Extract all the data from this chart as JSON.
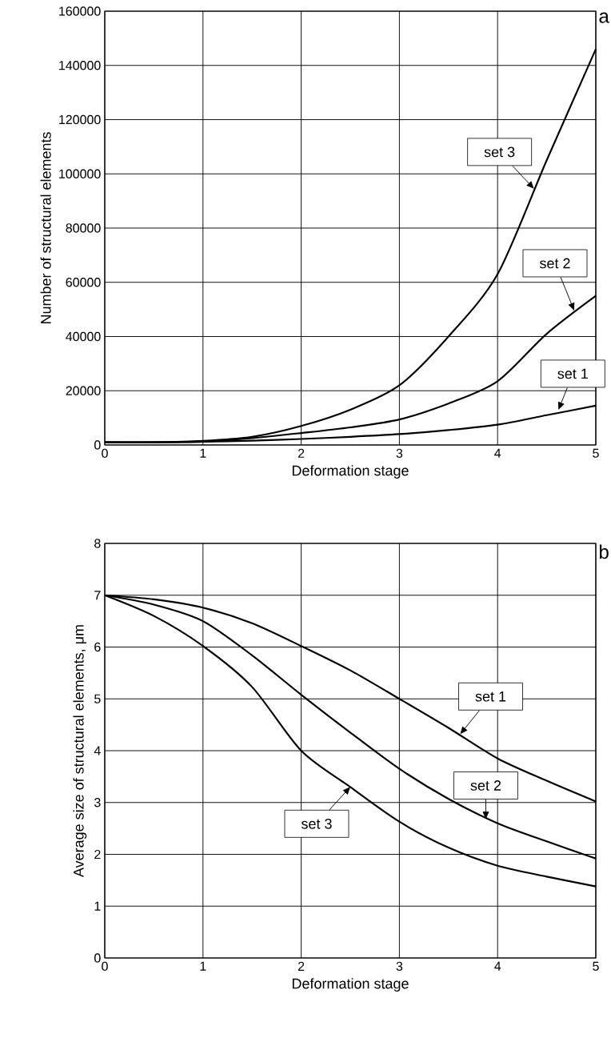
{
  "chart_data": [
    {
      "type": "line",
      "title": "a",
      "xlabel": "Deformation stage",
      "ylabel": "Number of structural elements",
      "x": [
        0,
        0.5,
        1,
        1.5,
        2,
        2.5,
        3,
        3.5,
        4,
        4.5,
        5
      ],
      "series": [
        {
          "color": "#000000",
          "values": [
            1000,
            1000,
            1200,
            1600,
            2200,
            3000,
            4000,
            5500,
            7500,
            11000,
            14500
          ]
        },
        {
          "color": "#000000",
          "values": [
            1000,
            1000,
            1200,
            2500,
            4400,
            6500,
            9400,
            15300,
            23500,
            41000,
            55000
          ]
        },
        {
          "color": "#000000",
          "values": [
            1000,
            1000,
            1500,
            3000,
            7000,
            13000,
            22000,
            40000,
            63000,
            105000,
            146000
          ]
        }
      ],
      "xlim": [
        0,
        5
      ],
      "xticks": [
        0,
        1,
        2,
        3,
        4,
        5
      ],
      "ylim": [
        0,
        160000
      ],
      "yticks": [
        0,
        20000,
        40000,
        60000,
        80000,
        100000,
        120000,
        140000,
        160000
      ],
      "grid": true,
      "marker": "none",
      "line_style": "solid",
      "annotations": [
        {
          "text": "set 3",
          "x": 4.37,
          "y": 94500
        },
        {
          "text": "set 2",
          "x": 4.78,
          "y": 49600
        },
        {
          "text": "set 1",
          "x": 4.62,
          "y": 13000
        }
      ]
    },
    {
      "type": "line",
      "title": "b",
      "xlabel": "Deformation stage",
      "ylabel": "Average size of structural elements, μm",
      "x": [
        0,
        0.5,
        1,
        1.5,
        2,
        2.5,
        3,
        3.5,
        4,
        4.5,
        5
      ],
      "series": [
        {
          "color": "#000000",
          "values": [
            7,
            6.92,
            6.76,
            6.46,
            6.02,
            5.55,
            5.0,
            4.44,
            3.85,
            3.42,
            3.02
          ]
        },
        {
          "color": "#000000",
          "values": [
            7,
            6.82,
            6.5,
            5.84,
            5.08,
            4.35,
            3.65,
            3.07,
            2.6,
            2.25,
            1.92
          ]
        },
        {
          "color": "#000000",
          "values": [
            7,
            6.6,
            6.02,
            5.23,
            4.0,
            3.3,
            2.63,
            2.13,
            1.78,
            1.57,
            1.38
          ]
        }
      ],
      "xlim": [
        0,
        5
      ],
      "xticks": [
        0,
        1,
        2,
        3,
        4,
        5
      ],
      "ylim": [
        0,
        8
      ],
      "yticks": [
        0,
        1,
        2,
        3,
        4,
        5,
        6,
        7,
        8
      ],
      "grid": true,
      "marker": "none",
      "line_style": "solid",
      "annotations": [
        {
          "text": "set 1",
          "x": 3.62,
          "y": 4.32
        },
        {
          "text": "set 2",
          "x": 3.88,
          "y": 2.68
        },
        {
          "text": "set 3",
          "x": 2.5,
          "y": 3.3
        }
      ]
    }
  ]
}
